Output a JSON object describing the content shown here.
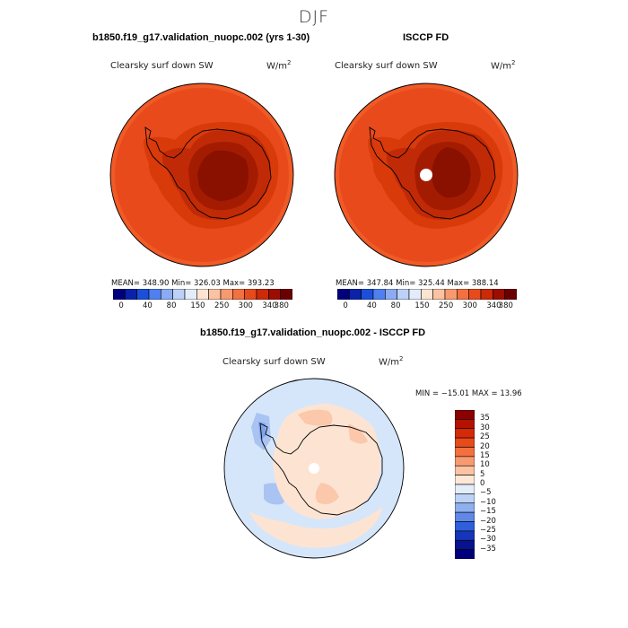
{
  "page": {
    "season": "DJF"
  },
  "panels": [
    {
      "title": "b1850.f19_g17.validation_nuopc.002 (yrs 1-30)",
      "variable": "Clearsky surf down SW",
      "units_base": "W/m",
      "units_exp": "2",
      "stats": "MEAN= 348.90  Min= 326.03  Max= 393.23",
      "pole_hole": false
    },
    {
      "title": "ISCCP FD",
      "variable": "Clearsky surf down SW",
      "units_base": "W/m",
      "units_exp": "2",
      "stats": "MEAN= 347.84  Min= 325.44  Max= 388.14",
      "pole_hole": true
    }
  ],
  "abs_colorbar": {
    "colors": [
      "#00007d",
      "#0a22a8",
      "#1c4fd8",
      "#4f7ff0",
      "#8cabf5",
      "#bcd1f8",
      "#e4ecfb",
      "#fde4d2",
      "#fbc3a2",
      "#f89a70",
      "#f3703f",
      "#e84a1c",
      "#cc2a08",
      "#9c0d02",
      "#6b0000"
    ],
    "tick_labels": [
      "0",
      "40",
      "80",
      "150",
      "250",
      "300",
      "340",
      "380"
    ]
  },
  "difference": {
    "title": "b1850.f19_g17.validation_nuopc.002 - ISCCP FD",
    "variable": "Clearsky surf down SW",
    "units_base": "W/m",
    "units_exp": "2",
    "minmax": "MIN = −15.01 MAX =  13.96",
    "colorbar": {
      "labels": [
        "35",
        "30",
        "25",
        "20",
        "15",
        "10",
        "5",
        "0",
        "−5",
        "−10",
        "−15",
        "−20",
        "−25",
        "−30",
        "−35"
      ],
      "colors": [
        "#8b0000",
        "#b31200",
        "#d42a08",
        "#e84a1c",
        "#f3703f",
        "#f89a70",
        "#fbc3a2",
        "#fde8d8",
        "#e4eefb",
        "#bcd3f5",
        "#8fb0ee",
        "#6088e6",
        "#2f5fdb",
        "#1635b8",
        "#07128f",
        "#00007d"
      ]
    }
  },
  "map_colors": {
    "ocean_abs": "#e84a1c",
    "ocean_edge_abs": "#f05a26",
    "ice_shelf_abs": "#d83a0a",
    "coast_band_abs": "#c12a06",
    "plateau_abs": "#a31c02",
    "dome_abs": "#8a1000",
    "diff_ocean": "#d6e6fa",
    "diff_land": "#fde4d2",
    "diff_pos": "#fbc8ab",
    "diff_neg": "#a9c3f2",
    "diff_neg2": "#7fa3ea"
  }
}
